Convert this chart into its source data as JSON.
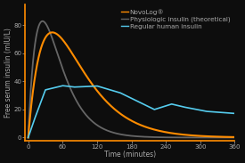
{
  "background_color": "#0d0d0d",
  "plot_bg_color": "#0d0d0d",
  "xlabel": "Time (minutes)",
  "ylabel": "Free serum insulin (mIU/L)",
  "xlabel_color": "#aaaaaa",
  "ylabel_color": "#aaaaaa",
  "tick_color": "#aaaaaa",
  "xlim": [
    -5,
    360
  ],
  "ylim": [
    -2,
    95
  ],
  "xticks": [
    0,
    60,
    120,
    180,
    240,
    300,
    360
  ],
  "yticks": [
    0,
    20,
    40,
    60,
    80
  ],
  "axis_color": "#ff8c00",
  "novolog_color": "#ff8c00",
  "physiologic_color": "#666666",
  "regular_color": "#55ccee",
  "legend_labels": [
    "NovoLog®",
    "Physiologic insulin (theoretical)",
    "Regular human insulin"
  ],
  "legend_fontsize": 5.2,
  "axis_label_fontsize": 5.5,
  "tick_fontsize": 5.0
}
